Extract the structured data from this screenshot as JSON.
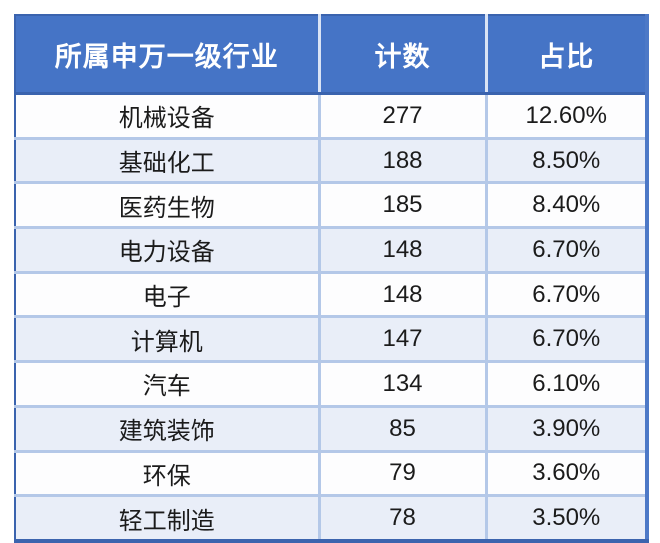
{
  "chart_data": {
    "type": "table",
    "title": "",
    "columns": [
      "所属申万一级行业",
      "计数",
      "占比"
    ],
    "rows": [
      [
        "机械设备",
        "277",
        "12.60%"
      ],
      [
        "基础化工",
        "188",
        "8.50%"
      ],
      [
        "医药生物",
        "185",
        "8.40%"
      ],
      [
        "电力设备",
        "148",
        "6.70%"
      ],
      [
        "电子",
        "148",
        "6.70%"
      ],
      [
        "计算机",
        "147",
        "6.70%"
      ],
      [
        "汽车",
        "134",
        "6.10%"
      ],
      [
        "建筑装饰",
        "85",
        "3.90%"
      ],
      [
        "环保",
        "79",
        "3.60%"
      ],
      [
        "轻工制造",
        "78",
        "3.50%"
      ]
    ]
  },
  "colors": {
    "header_bg": "#4574c6",
    "header_text": "#ffffff",
    "header_divider": "#d9e3f5",
    "outer_border": "#3a63ae",
    "right_border": "#4d79c7",
    "bottom_border": "#3c64ae",
    "grid_line": "#b4c8e8",
    "row_bg": "#fdfdfe",
    "row_alt_bg": "#e9eef8",
    "body_text": "#1b1b1b"
  }
}
